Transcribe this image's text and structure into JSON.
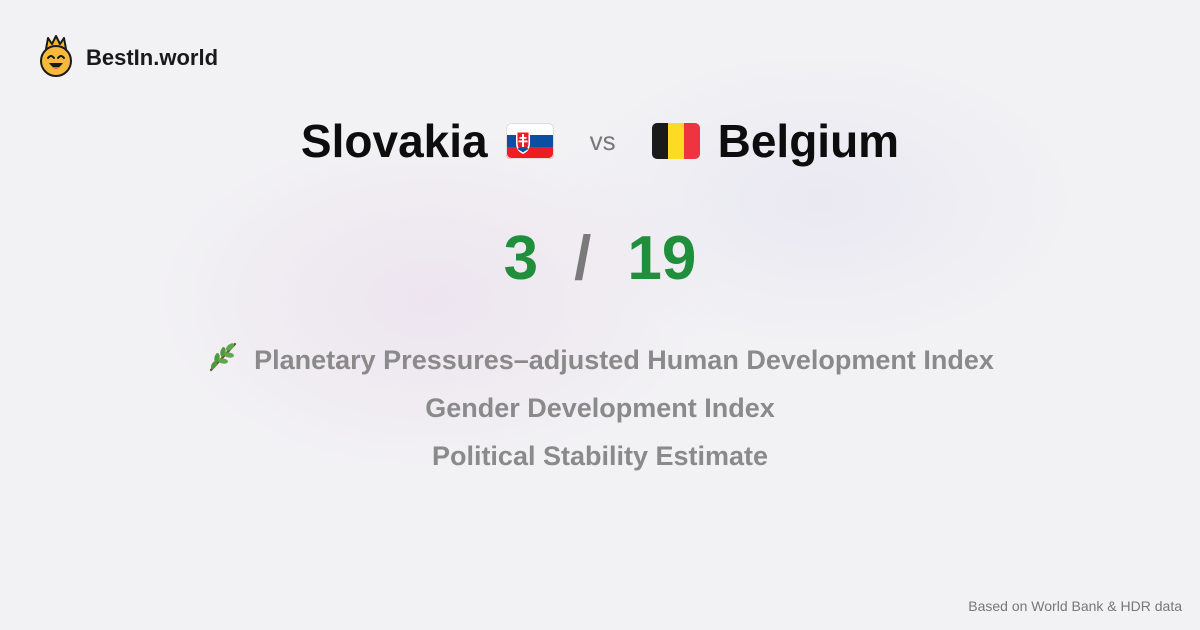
{
  "brand": {
    "name": "BestIn.world",
    "icon": "crown-smiley-icon"
  },
  "comparison": {
    "left_country": "Slovakia",
    "left_flag_icon": "slovakia-flag-icon",
    "vs_label": "vs",
    "right_country": "Belgium",
    "right_flag_icon": "belgium-flag-icon"
  },
  "scores": {
    "left": "3",
    "separator": "/",
    "right": "19",
    "color": "#1f8f3c"
  },
  "metrics": [
    {
      "icon": "leaf-icon",
      "label": "Planetary Pressures–adjusted Human Development Index"
    },
    {
      "label": "Gender Development Index"
    },
    {
      "label": "Political Stability Estimate"
    }
  ],
  "footer": {
    "source": "Based on World Bank & HDR data"
  }
}
